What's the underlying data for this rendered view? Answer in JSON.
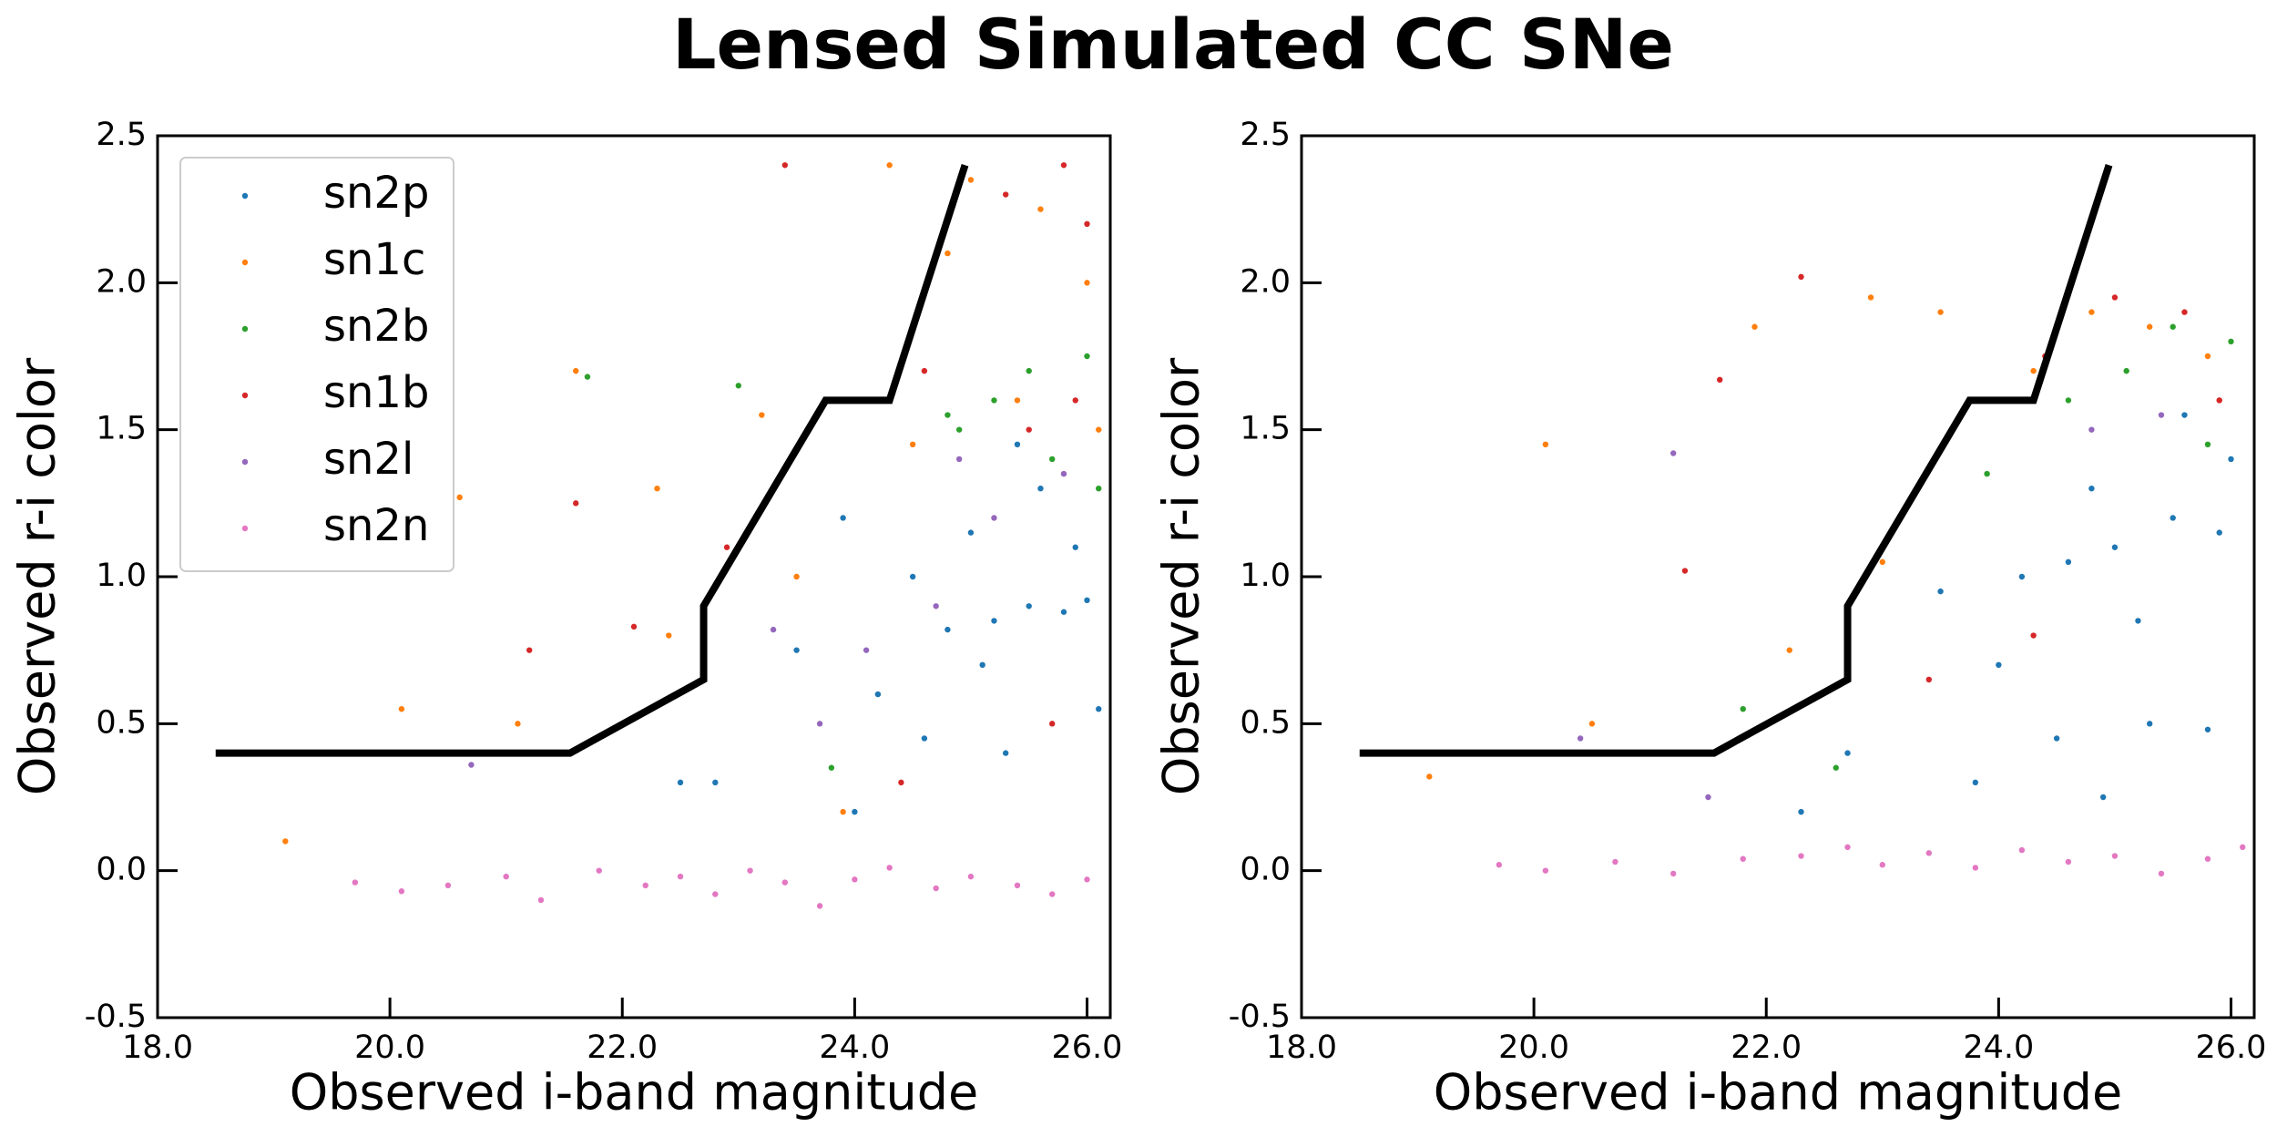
{
  "title": "Lensed Simulated CC SNe",
  "chart_data": [
    {
      "type": "scatter",
      "xlabel": "Observed i-band magnitude",
      "ylabel": "Observed r-i color",
      "xlim": [
        18,
        26.2
      ],
      "ylim": [
        -0.5,
        2.5
      ],
      "xticks": [
        {
          "value": 18,
          "label": "18.0"
        },
        {
          "value": 20,
          "label": "20.0"
        },
        {
          "value": 22,
          "label": "22.0"
        },
        {
          "value": 24,
          "label": "24.0"
        },
        {
          "value": 26,
          "label": "26.0"
        }
      ],
      "yticks": [
        {
          "value": -0.5,
          "label": "-0.5"
        },
        {
          "value": 0,
          "label": "0.0"
        },
        {
          "value": 0.5,
          "label": "0.5"
        },
        {
          "value": 1,
          "label": "1.0"
        },
        {
          "value": 1.5,
          "label": "1.5"
        },
        {
          "value": 2,
          "label": "2.0"
        },
        {
          "value": 2.5,
          "label": "2.5"
        }
      ],
      "legend": "upper left",
      "line": {
        "color": "#000000",
        "x": [
          18.5,
          21.55,
          22.7,
          22.7,
          23.75,
          24.3,
          24.95
        ],
        "y": [
          0.4,
          0.4,
          0.65,
          0.9,
          1.6,
          1.6,
          2.4
        ]
      },
      "series": [
        {
          "name": "sn2p",
          "color": "#1f77b4",
          "x": [
            25.5,
            25.8,
            26.0,
            25.2,
            24.8,
            24.5,
            25.0,
            25.6,
            24.2,
            24.6,
            25.3,
            23.5,
            22.8,
            24.0,
            25.9,
            25.4,
            23.9,
            22.5,
            26.1,
            25.1
          ],
          "y": [
            0.9,
            0.88,
            0.92,
            0.85,
            0.82,
            1.0,
            1.15,
            1.3,
            0.6,
            0.45,
            0.4,
            0.75,
            0.3,
            0.2,
            1.1,
            1.45,
            1.2,
            0.3,
            0.55,
            0.7
          ]
        },
        {
          "name": "sn1c",
          "color": "#ff7f0e",
          "x": [
            24.3,
            25.0,
            25.6,
            26.0,
            24.8,
            23.2,
            22.3,
            21.6,
            20.6,
            19.1,
            20.1,
            22.4,
            23.9,
            25.4,
            26.1,
            23.5,
            24.5,
            21.1
          ],
          "y": [
            2.4,
            2.35,
            2.25,
            2.0,
            2.1,
            1.55,
            1.3,
            1.7,
            1.27,
            0.1,
            0.55,
            0.8,
            0.2,
            1.6,
            1.5,
            1.0,
            1.45,
            0.5
          ]
        },
        {
          "name": "sn2b",
          "color": "#2ca02c",
          "x": [
            25.5,
            26.0,
            25.2,
            24.8,
            26.1,
            25.7,
            23.0,
            21.7,
            23.8,
            24.9
          ],
          "y": [
            1.7,
            1.75,
            1.6,
            1.55,
            1.3,
            1.4,
            1.65,
            1.68,
            0.35,
            1.5
          ]
        },
        {
          "name": "sn1b",
          "color": "#d62728",
          "x": [
            25.8,
            26.0,
            25.3,
            24.6,
            25.5,
            25.9,
            23.4,
            22.1,
            21.6,
            21.2,
            24.4,
            25.7,
            22.9
          ],
          "y": [
            2.4,
            2.2,
            2.3,
            1.7,
            1.5,
            1.6,
            2.4,
            0.83,
            1.25,
            0.75,
            0.3,
            0.5,
            1.1
          ]
        },
        {
          "name": "sn2l",
          "color": "#9467bd",
          "x": [
            23.3,
            24.1,
            24.7,
            25.2,
            25.8,
            20.7,
            23.7,
            24.9
          ],
          "y": [
            0.82,
            0.75,
            0.9,
            1.2,
            1.35,
            0.36,
            0.5,
            1.4
          ]
        },
        {
          "name": "sn2n",
          "color": "#e377c2",
          "x": [
            19.7,
            20.1,
            20.5,
            21.0,
            21.3,
            21.8,
            22.2,
            22.5,
            22.8,
            23.1,
            23.4,
            23.7,
            24.0,
            24.3,
            24.7,
            25.0,
            25.4,
            25.7,
            26.0
          ],
          "y": [
            -0.04,
            -0.07,
            -0.05,
            -0.02,
            -0.1,
            0.0,
            -0.05,
            -0.02,
            -0.08,
            0.0,
            -0.04,
            -0.12,
            -0.03,
            0.01,
            -0.06,
            -0.02,
            -0.05,
            -0.08,
            -0.03
          ]
        }
      ]
    },
    {
      "type": "scatter",
      "xlabel": "Observed i-band magnitude",
      "ylabel": "Observed r-i color",
      "xlim": [
        18,
        26.2
      ],
      "ylim": [
        -0.5,
        2.5
      ],
      "xticks": [
        {
          "value": 18,
          "label": "18.0"
        },
        {
          "value": 20,
          "label": "20.0"
        },
        {
          "value": 22,
          "label": "22.0"
        },
        {
          "value": 24,
          "label": "24.0"
        },
        {
          "value": 26,
          "label": "26.0"
        }
      ],
      "yticks": [
        {
          "value": -0.5,
          "label": "-0.5"
        },
        {
          "value": 0,
          "label": "0.0"
        },
        {
          "value": 0.5,
          "label": "0.5"
        },
        {
          "value": 1,
          "label": "1.0"
        },
        {
          "value": 1.5,
          "label": "1.5"
        },
        {
          "value": 2,
          "label": "2.0"
        },
        {
          "value": 2.5,
          "label": "2.5"
        }
      ],
      "line": {
        "color": "#000000",
        "x": [
          18.5,
          21.55,
          22.7,
          22.7,
          23.75,
          24.3,
          24.95
        ],
        "y": [
          0.4,
          0.4,
          0.65,
          0.9,
          1.6,
          1.6,
          2.4
        ]
      },
      "series": [
        {
          "color": "#1f77b4",
          "x": [
            25.5,
            25.9,
            25.0,
            24.6,
            24.2,
            25.3,
            24.5,
            25.8,
            23.8,
            22.7,
            24.0,
            25.2,
            26.0,
            25.6,
            24.8,
            23.5,
            22.3,
            24.9
          ],
          "y": [
            1.2,
            1.15,
            1.1,
            1.05,
            1.0,
            0.5,
            0.45,
            0.48,
            0.3,
            0.4,
            0.7,
            0.85,
            1.4,
            1.55,
            1.3,
            0.95,
            0.2,
            0.25
          ]
        },
        {
          "color": "#ff7f0e",
          "x": [
            24.8,
            25.3,
            25.8,
            24.3,
            23.5,
            22.9,
            21.9,
            20.1,
            19.1,
            20.5,
            22.2,
            23.0,
            25.9
          ],
          "y": [
            1.9,
            1.85,
            1.75,
            1.7,
            1.9,
            1.95,
            1.85,
            1.45,
            0.32,
            0.5,
            0.75,
            1.05,
            1.6
          ]
        },
        {
          "color": "#2ca02c",
          "x": [
            25.5,
            26.0,
            25.1,
            24.6,
            25.8,
            23.9,
            21.8,
            22.6
          ],
          "y": [
            1.85,
            1.8,
            1.7,
            1.6,
            1.45,
            1.35,
            0.55,
            0.35
          ]
        },
        {
          "color": "#d62728",
          "x": [
            25.0,
            25.6,
            24.4,
            25.9,
            22.3,
            21.6,
            21.3,
            24.3,
            23.4
          ],
          "y": [
            1.95,
            1.9,
            1.75,
            1.6,
            2.02,
            1.67,
            1.02,
            0.8,
            0.65
          ]
        },
        {
          "color": "#9467bd",
          "x": [
            21.2,
            21.5,
            24.8,
            25.4,
            20.4
          ],
          "y": [
            1.42,
            0.25,
            1.5,
            1.55,
            0.45
          ]
        },
        {
          "color": "#e377c2",
          "x": [
            19.7,
            20.1,
            20.7,
            21.2,
            21.8,
            22.3,
            22.7,
            23.0,
            23.4,
            23.8,
            24.2,
            24.6,
            25.0,
            25.4,
            25.8,
            26.1
          ],
          "y": [
            0.02,
            0.0,
            0.03,
            -0.01,
            0.04,
            0.05,
            0.08,
            0.02,
            0.06,
            0.01,
            0.07,
            0.03,
            0.05,
            -0.01,
            0.04,
            0.08
          ]
        }
      ]
    }
  ]
}
